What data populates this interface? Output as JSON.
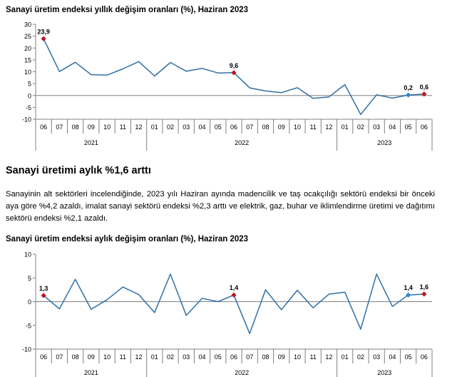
{
  "charts": [
    {
      "title": "Sanayi üretim endeksi yıllık değişim oranları (%), Haziran 2023"
    },
    {
      "title": "Sanayi üretim endeksi aylık değişim oranları (%), Haziran 2023"
    }
  ],
  "section_heading": "Sanayi üretimi aylık %1,6 arttı",
  "paragraph": "Sanayinin alt sektörleri incelendiğinde, 2023 yılı Haziran ayında madencilik ve taş ocakçılığı sektörü endeksi bir önceki aya göre %4,2 azaldı, imalat sanayi sektörü endeksi %2,3 arttı ve elektrik, gaz, buhar ve iklimlendirme üretimi ve dağıtımı sektörü endeksi %2,1 azaldı.",
  "colors": {
    "line": "#2e6fa8",
    "highlight_red": "#c0141b",
    "highlight_blue": "#2e86c8",
    "axis": "#808080"
  },
  "chart_data": [
    {
      "type": "line",
      "title": "Sanayi üretim endeksi yıllık değişim oranları (%), Haziran 2023",
      "categories": [
        "06",
        "07",
        "08",
        "09",
        "10",
        "11",
        "12",
        "01",
        "02",
        "03",
        "04",
        "05",
        "06",
        "07",
        "08",
        "09",
        "10",
        "11",
        "12",
        "01",
        "02",
        "03",
        "04",
        "05",
        "06"
      ],
      "year_groups": [
        {
          "label": "2021",
          "start": 0,
          "end": 6
        },
        {
          "label": "2022",
          "start": 7,
          "end": 18
        },
        {
          "label": "2023",
          "start": 19,
          "end": 24
        }
      ],
      "values": [
        23.9,
        10.1,
        14.0,
        8.8,
        8.6,
        11.2,
        14.3,
        8.2,
        13.9,
        10.2,
        11.4,
        9.5,
        9.6,
        3.2,
        1.9,
        1.2,
        3.3,
        -1.2,
        -0.6,
        4.6,
        -8.0,
        0.3,
        -1.1,
        0.2,
        0.6
      ],
      "ylim": [
        -10,
        30
      ],
      "yticks": [
        -10,
        -5,
        0,
        5,
        10,
        15,
        20,
        25,
        30
      ],
      "markers": [
        {
          "index": 0,
          "label": "23,9",
          "color": "red"
        },
        {
          "index": 12,
          "label": "9,6",
          "color": "red"
        },
        {
          "index": 23,
          "label": "0,2",
          "color": "blue"
        },
        {
          "index": 24,
          "label": "0,6",
          "color": "red"
        }
      ],
      "grid": false
    },
    {
      "type": "line",
      "title": "Sanayi üretim endeksi aylık değişim oranları (%), Haziran 2023",
      "categories": [
        "06",
        "07",
        "08",
        "09",
        "10",
        "11",
        "12",
        "01",
        "02",
        "03",
        "04",
        "05",
        "06",
        "07",
        "08",
        "09",
        "10",
        "11",
        "12",
        "01",
        "02",
        "03",
        "04",
        "05",
        "06"
      ],
      "year_groups": [
        {
          "label": "2021",
          "start": 0,
          "end": 6
        },
        {
          "label": "2022",
          "start": 7,
          "end": 18
        },
        {
          "label": "2023",
          "start": 19,
          "end": 24
        }
      ],
      "values": [
        1.3,
        -1.5,
        4.7,
        -1.6,
        0.4,
        3.1,
        1.5,
        -2.3,
        5.8,
        -2.9,
        0.7,
        0.0,
        1.4,
        -6.7,
        2.5,
        -1.7,
        2.4,
        -1.3,
        1.6,
        2.0,
        -5.8,
        5.8,
        -1.0,
        1.4,
        1.6
      ],
      "ylim": [
        -10,
        10
      ],
      "yticks": [
        -10,
        -5,
        0,
        5,
        10
      ],
      "markers": [
        {
          "index": 0,
          "label": "1,3",
          "color": "red"
        },
        {
          "index": 12,
          "label": "1,4",
          "color": "red"
        },
        {
          "index": 23,
          "label": "1,4",
          "color": "blue"
        },
        {
          "index": 24,
          "label": "1,6",
          "color": "red"
        }
      ],
      "grid": false
    }
  ]
}
